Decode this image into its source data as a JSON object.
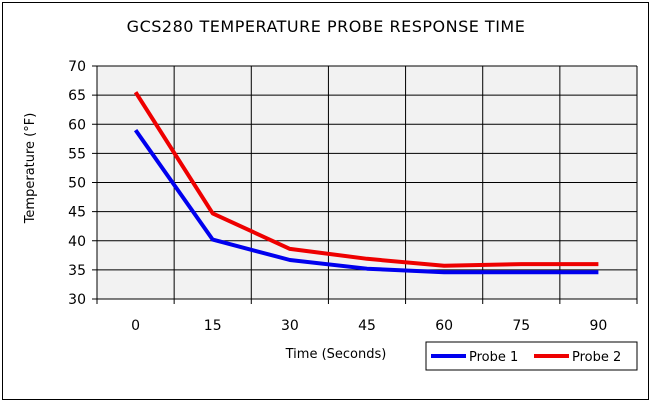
{
  "chart_data": {
    "type": "line",
    "title": "GCS280 TEMPERATURE PROBE RESPONSE TIME",
    "xlabel": "Time (Seconds)",
    "ylabel": "Temperature (°F)",
    "x": [
      0,
      15,
      30,
      45,
      60,
      75,
      90
    ],
    "x_tick_labels": [
      "0",
      "15",
      "30",
      "45",
      "60",
      "75",
      "90"
    ],
    "y_tick_labels": [
      "30",
      "35",
      "40",
      "45",
      "50",
      "55",
      "60",
      "65",
      "70"
    ],
    "ylim": [
      30,
      70
    ],
    "grid": true,
    "legend_position": "bottom-right",
    "plot_background": "#f2f2f2",
    "series": [
      {
        "name": "Probe 1",
        "color": "#0000ee",
        "values": [
          59.0,
          40.2,
          36.7,
          35.2,
          34.6,
          34.6,
          34.6
        ]
      },
      {
        "name": "Probe 2",
        "color": "#ee0000",
        "values": [
          65.5,
          44.7,
          38.6,
          36.9,
          35.7,
          36.0,
          36.0
        ]
      }
    ]
  }
}
